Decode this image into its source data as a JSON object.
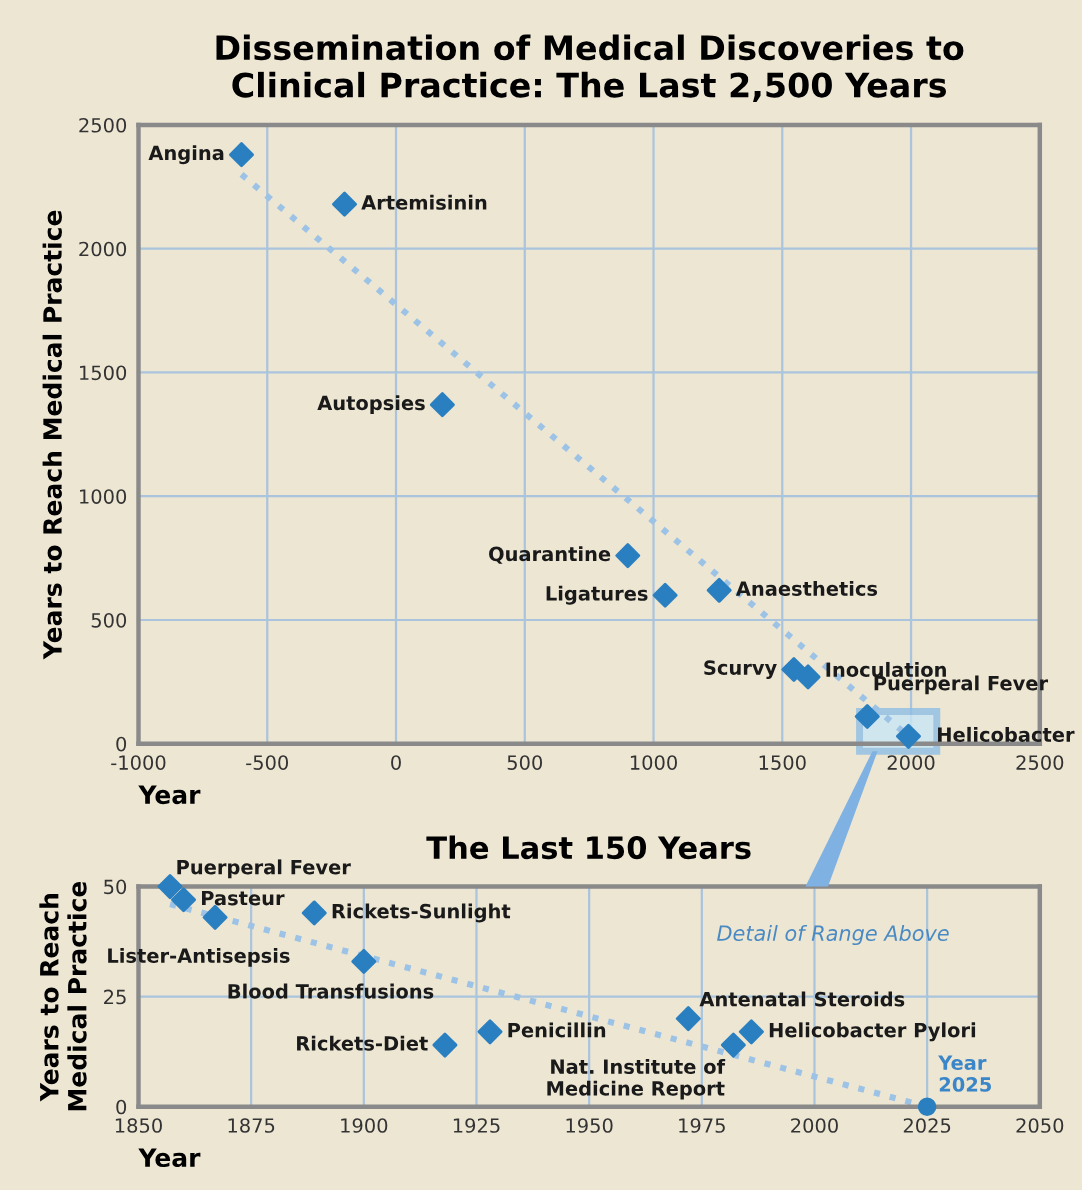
{
  "chart_data": [
    {
      "type": "scatter",
      "title": "Dissemination of Medical Discoveries to\nClinical Practice: The Last 2,500 Years",
      "xlabel": "Year",
      "ylabel": "Years to Reach Medical Practice",
      "xlim": [
        -1000,
        2500
      ],
      "xticks": [
        -1000,
        -500,
        0,
        500,
        1000,
        1500,
        2000,
        2500
      ],
      "ylim": [
        0,
        2500
      ],
      "yticks": [
        0,
        500,
        1000,
        1500,
        2000,
        2500
      ],
      "grid": true,
      "series": [
        {
          "marker": "diamond",
          "color": "#2a7fc0",
          "x": [
            -600,
            -200,
            180,
            900,
            1045,
            1255,
            1545,
            1600,
            1830,
            1990
          ],
          "values": [
            2380,
            2180,
            1370,
            760,
            600,
            620,
            300,
            270,
            110,
            30
          ]
        },
        {
          "type": "line",
          "line_style": "dotted",
          "color": "#9cc3e6",
          "x": [
            -600,
            2025
          ],
          "values": [
            2300,
            0
          ]
        }
      ],
      "annotations": [
        {
          "text": "Angina",
          "x": -600,
          "y": 2380
        },
        {
          "text": "Artemisinin",
          "x": -200,
          "y": 2180
        },
        {
          "text": "Autopsies",
          "x": 180,
          "y": 1370
        },
        {
          "text": "Quarantine",
          "x": 900,
          "y": 760
        },
        {
          "text": "Ligatures",
          "x": 1045,
          "y": 600
        },
        {
          "text": "Anaesthetics",
          "x": 1255,
          "y": 620
        },
        {
          "text": "Scurvy",
          "x": 1545,
          "y": 300
        },
        {
          "text": "Inoculation",
          "x": 1600,
          "y": 270
        },
        {
          "text": "Puerperal Fever",
          "x": 1830,
          "y": 110
        },
        {
          "text": "Helicobacter",
          "x": 1990,
          "y": 30
        }
      ]
    },
    {
      "type": "scatter",
      "title": "The Last 150 Years",
      "xlabel": "Year",
      "ylabel": "Years to Reach\nMedical Practice",
      "xlim": [
        1850,
        2050
      ],
      "xticks": [
        1850,
        1875,
        1900,
        1925,
        1950,
        1975,
        2000,
        2025,
        2050
      ],
      "ylim": [
        0,
        50
      ],
      "yticks": [
        0,
        25,
        50
      ],
      "grid": true,
      "series": [
        {
          "marker": "diamond",
          "color": "#2a7fc0",
          "x": [
            1857,
            1860,
            1867,
            1889,
            1900,
            1918,
            1928,
            1972,
            1982,
            1986
          ],
          "values": [
            50,
            47,
            43,
            44,
            33,
            14,
            17,
            20,
            14,
            17
          ]
        },
        {
          "marker": "circle",
          "color": "#2a7fc0",
          "x": [
            2025
          ],
          "values": [
            0
          ]
        },
        {
          "type": "line",
          "line_style": "dotted",
          "color": "#9cc3e6",
          "x": [
            1857,
            2025
          ],
          "values": [
            46,
            0
          ]
        }
      ],
      "annotations": [
        {
          "text": "Puerperal Fever",
          "x": 1857,
          "y": 50
        },
        {
          "text": "Pasteur",
          "x": 1860,
          "y": 47
        },
        {
          "text": "Lister-Antisepsis",
          "x": 1867,
          "y": 43
        },
        {
          "text": "Rickets-Sunlight",
          "x": 1889,
          "y": 44
        },
        {
          "text": "Blood Transfusions",
          "x": 1900,
          "y": 33
        },
        {
          "text": "Rickets-Diet",
          "x": 1918,
          "y": 14
        },
        {
          "text": "Penicillin",
          "x": 1928,
          "y": 17
        },
        {
          "text": "Antenatal Steroids",
          "x": 1972,
          "y": 20
        },
        {
          "text": "Nat. Institute of\nMedicine Report",
          "x": 1982,
          "y": 14
        },
        {
          "text": "Helicobacter Pylori",
          "x": 1986,
          "y": 17
        },
        {
          "text": "Year\n2025",
          "x": 2025,
          "y": 0
        },
        "Detail of Range Above"
      ]
    }
  ]
}
